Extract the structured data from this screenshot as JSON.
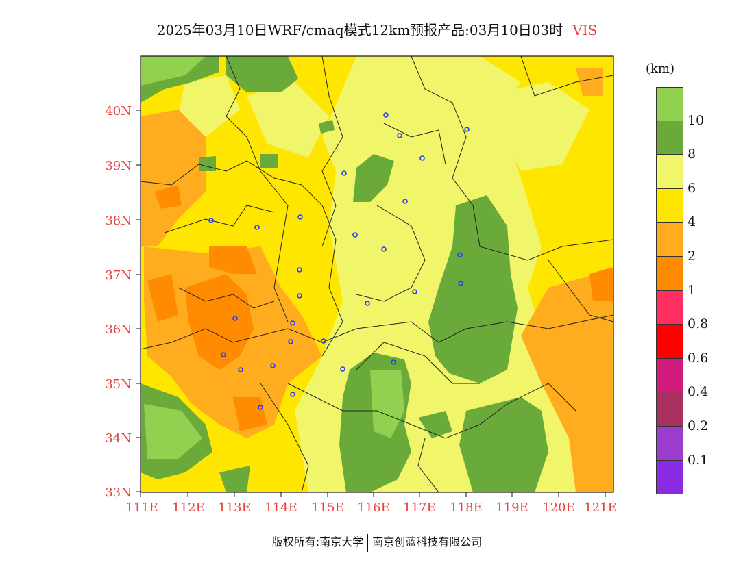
{
  "title": {
    "main": "2025年03月10日WRF/cmaq模式12km预报产品:03月10日03时",
    "variable": "VIS"
  },
  "map": {
    "lat_labels": [
      "40N",
      "39N",
      "38N",
      "37N",
      "36N",
      "35N",
      "34N",
      "33N"
    ],
    "lon_labels": [
      "111E",
      "112E",
      "113E",
      "114E",
      "115E",
      "116E",
      "117E",
      "118E",
      "119E",
      "120E",
      "121E"
    ],
    "axis_label_color": "#e8403c"
  },
  "legend": {
    "unit": "(km)",
    "tick_labels": [
      "10",
      "8",
      "6",
      "4",
      "2",
      "1",
      "0.8",
      "0.6",
      "0.4",
      "0.2",
      "0.1"
    ],
    "colors": [
      "#92d050",
      "#6aaa3a",
      "#f0f56a",
      "#ffe600",
      "#ffad1f",
      "#ff8c00",
      "#ff3060",
      "#ff0000",
      "#d01b7c",
      "#a83060",
      "#9b3ccc",
      "#8a2be2"
    ]
  },
  "footer": {
    "left": "版权所有:南京大学",
    "right": "南京创蓝科技有限公司"
  }
}
